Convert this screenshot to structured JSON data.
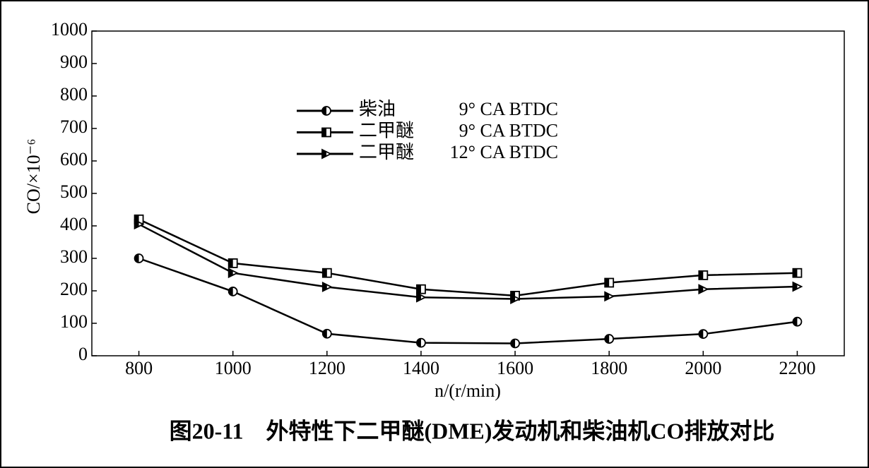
{
  "chart_data": {
    "type": "line",
    "ylabel": "CO/×10⁻⁶",
    "xlabel": "n/(r/min)",
    "caption": "图20-11　外特性下二甲醚(DME)发动机和柴油机CO排放对比",
    "x": [
      800,
      1000,
      1200,
      1400,
      1600,
      1800,
      2000,
      2200
    ],
    "xlim": [
      700,
      2300
    ],
    "xticks": [
      800,
      1000,
      1200,
      1400,
      1600,
      1800,
      2000,
      2200
    ],
    "ylim": [
      0,
      1000
    ],
    "yticks": [
      0,
      100,
      200,
      300,
      400,
      500,
      600,
      700,
      800,
      900,
      1000
    ],
    "series": [
      {
        "name": "柴油",
        "condition": "9° CA BTDC",
        "marker": "circle",
        "color": "#000000",
        "values": [
          300,
          198,
          68,
          40,
          38,
          52,
          67,
          105
        ]
      },
      {
        "name": "二甲醚",
        "condition": "9° CA BTDC",
        "marker": "square",
        "color": "#000000",
        "values": [
          420,
          285,
          255,
          205,
          185,
          225,
          248,
          255
        ]
      },
      {
        "name": "二甲醚",
        "condition": "12° CA BTDC",
        "marker": "triangle",
        "color": "#000000",
        "values": [
          405,
          255,
          212,
          180,
          175,
          183,
          205,
          213
        ]
      }
    ]
  }
}
